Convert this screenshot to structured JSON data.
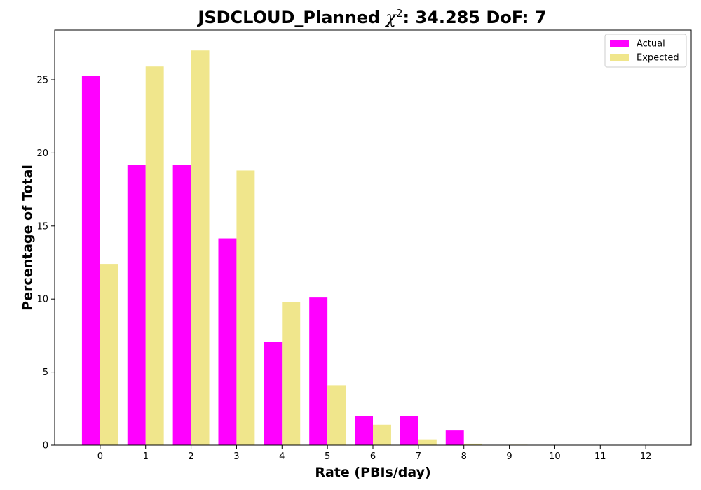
{
  "chart_data": {
    "type": "bar",
    "title_prefix": "JSDCLOUD_Planned ",
    "title_chi": "χ",
    "title_sup": "2",
    "title_suffix": ": 34.285 DoF: 7",
    "xlabel": "Rate (PBIs/day)",
    "ylabel": "Percentage of Total",
    "categories": [
      "0",
      "1",
      "2",
      "3",
      "4",
      "5",
      "6",
      "7",
      "8",
      "9",
      "10",
      "11",
      "12"
    ],
    "yticks": [
      0,
      5,
      10,
      15,
      20,
      25
    ],
    "ylim": [
      0,
      28.4
    ],
    "grid": false,
    "legend_position": "top-right",
    "series": [
      {
        "name": "Actual",
        "color": "#ff00ff",
        "values": [
          25.25,
          19.2,
          19.2,
          14.15,
          7.05,
          10.1,
          2.0,
          2.0,
          1.0,
          0,
          0,
          0,
          0
        ]
      },
      {
        "name": "Expected",
        "color": "#f0e68c",
        "values": [
          12.4,
          25.9,
          27.0,
          18.8,
          9.8,
          4.1,
          1.4,
          0.4,
          0.1,
          0.03,
          0,
          0,
          0
        ]
      }
    ]
  }
}
